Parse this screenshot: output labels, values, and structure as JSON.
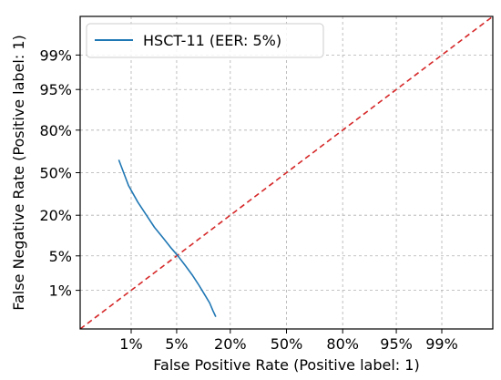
{
  "chart_data": {
    "type": "line",
    "title": "",
    "xlabel": "False Positive Rate (Positive label: 1)",
    "ylabel": "False Negative Rate (Positive label: 1)",
    "x_scale": "normal-deviate (probit)",
    "y_scale": "normal-deviate (probit)",
    "xlim": [
      0.001,
      0.999
    ],
    "ylim": [
      0.001,
      0.999
    ],
    "x_ticks": [
      0.01,
      0.05,
      0.2,
      0.5,
      0.8,
      0.95,
      0.99
    ],
    "x_tick_labels": [
      "1%",
      "5%",
      "20%",
      "50%",
      "80%",
      "95%",
      "99%"
    ],
    "y_ticks": [
      0.01,
      0.05,
      0.2,
      0.5,
      0.8,
      0.95,
      0.99
    ],
    "y_tick_labels": [
      "1%",
      "5%",
      "20%",
      "50%",
      "80%",
      "95%",
      "99%"
    ],
    "grid": true,
    "legend_position": "top-left",
    "series": [
      {
        "name": "HSCT-11 (EER: 5%)",
        "color": "#1f77b4",
        "style": "solid",
        "x": [
          0.006,
          0.009,
          0.013,
          0.018,
          0.024,
          0.032,
          0.042,
          0.052,
          0.065,
          0.08,
          0.095,
          0.11,
          0.125,
          0.135,
          0.145
        ],
        "y": [
          0.6,
          0.4,
          0.28,
          0.2,
          0.14,
          0.1,
          0.068,
          0.05,
          0.033,
          0.021,
          0.013,
          0.008,
          0.005,
          0.0032,
          0.0022
        ]
      },
      {
        "name": "",
        "color": "#d62728",
        "style": "dashed",
        "x": [
          0.001,
          0.999
        ],
        "y": [
          0.001,
          0.999
        ]
      }
    ]
  }
}
